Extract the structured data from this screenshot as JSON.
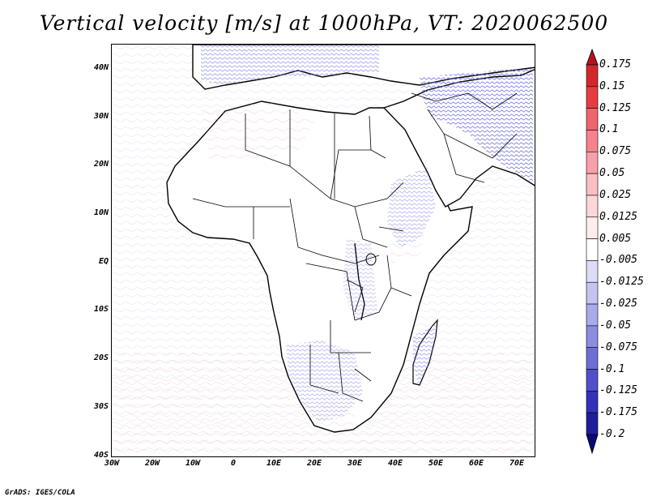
{
  "title": "Vertical velocity [m/s] at 1000hPa, VT: 2020062500",
  "credit": "GrADS: IGES/COLA",
  "lat_labels": [
    "40N",
    "30N",
    "20N",
    "10N",
    "EQ",
    "10S",
    "20S",
    "30S",
    "40S"
  ],
  "lon_labels": [
    "30W",
    "20W",
    "10W",
    "0",
    "10E",
    "20E",
    "30E",
    "40E",
    "50E",
    "60E",
    "70E"
  ],
  "colorbar": {
    "labels": [
      "0.175",
      "0.15",
      "0.125",
      "0.1",
      "0.075",
      "0.05",
      "0.025",
      "0.0125",
      "0.005",
      "-0.005",
      "-0.0125",
      "-0.025",
      "-0.05",
      "-0.075",
      "-0.1",
      "-0.125",
      "-0.175",
      "-0.2"
    ],
    "colors": [
      "#b4141e",
      "#d2282d",
      "#e63c41",
      "#f0646e",
      "#f5828c",
      "#f8a0aa",
      "#fbbec3",
      "#fdd6d9",
      "#ffecee",
      "#ffffff",
      "#dcdcf6",
      "#c4c4f0",
      "#aaaaea",
      "#8c8ce0",
      "#6e6ed6",
      "#5050cc",
      "#3232b8",
      "#1e1e9a",
      "#0a0a78"
    ]
  },
  "map": {
    "region": "Africa and Arabian Peninsula",
    "lon_range": [
      -30,
      75
    ],
    "lat_range": [
      -40,
      45
    ],
    "positive_color": "#f08c8c",
    "negative_color": "#6464e6"
  }
}
